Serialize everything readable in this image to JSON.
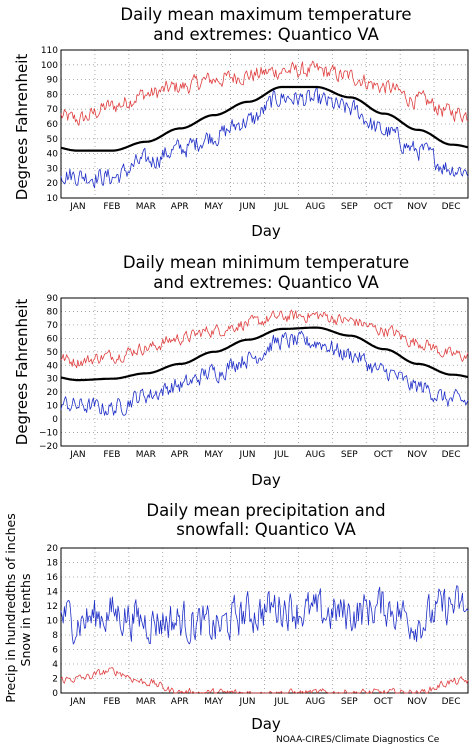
{
  "chart_data": [
    {
      "type": "line",
      "title_line1": "Daily mean maximum temperature",
      "title_line2": "and extremes: Quantico VA",
      "xlabel": "Day",
      "ylabel": "Degrees Fahrenheit",
      "ylim": [
        10,
        110
      ],
      "yticks": [
        "10",
        "20",
        "30",
        "40",
        "50",
        "60",
        "70",
        "80",
        "90",
        "100",
        "110"
      ],
      "categories": [
        "JAN",
        "FEB",
        "MAR",
        "APR",
        "MAY",
        "JUN",
        "JUL",
        "AUG",
        "SEP",
        "OCT",
        "NOV",
        "DEC"
      ],
      "grid": true,
      "series": [
        {
          "key": "mean",
          "color": "#000000",
          "width": 2.2,
          "values": [
            42,
            42,
            48,
            57,
            66,
            75,
            85,
            85,
            78,
            67,
            56,
            46
          ],
          "noise": 0
        },
        {
          "key": "high",
          "color": "#e04040",
          "width": 0.8,
          "values": [
            63,
            72,
            80,
            85,
            90,
            93,
            96,
            96,
            92,
            85,
            76,
            68
          ],
          "noise": 6
        },
        {
          "key": "low",
          "color": "#2030c8",
          "width": 0.8,
          "values": [
            25,
            24,
            35,
            43,
            52,
            62,
            78,
            76,
            70,
            55,
            42,
            30
          ],
          "noise": 7
        }
      ]
    },
    {
      "type": "line",
      "title_line1": "Daily mean minimum temperature",
      "title_line2": "and extremes: Quantico VA",
      "xlabel": "Day",
      "ylabel": "Degrees Fahrenheit",
      "ylim": [
        -20,
        90
      ],
      "yticks": [
        "−20",
        "−10",
        "0",
        "10",
        "20",
        "30",
        "40",
        "50",
        "60",
        "70",
        "80",
        "90"
      ],
      "categories": [
        "JAN",
        "FEB",
        "MAR",
        "APR",
        "MAY",
        "JUN",
        "JUL",
        "AUG",
        "SEP",
        "OCT",
        "NOV",
        "DEC"
      ],
      "grid": true,
      "series": [
        {
          "key": "mean",
          "color": "#000000",
          "width": 2.2,
          "values": [
            29,
            30,
            34,
            41,
            50,
            59,
            67,
            68,
            62,
            52,
            41,
            33
          ],
          "noise": 0
        },
        {
          "key": "high",
          "color": "#e04040",
          "width": 0.8,
          "values": [
            43,
            47,
            53,
            60,
            66,
            71,
            76,
            77,
            73,
            66,
            57,
            48
          ],
          "noise": 5
        },
        {
          "key": "low",
          "color": "#2030c8",
          "width": 0.8,
          "values": [
            10,
            8,
            18,
            25,
            35,
            45,
            58,
            57,
            48,
            35,
            24,
            14
          ],
          "noise": 7
        }
      ]
    },
    {
      "type": "line",
      "title_line1": "Daily mean precipitation and",
      "title_line2": "snowfall: Quantico VA",
      "xlabel": "Day",
      "ylabel_line1": "Precip in hundredths of inches",
      "ylabel_line2": "Snow in tenths",
      "ylim": [
        0,
        20
      ],
      "yticks": [
        "0",
        "2",
        "4",
        "6",
        "8",
        "10",
        "12",
        "14",
        "16",
        "18",
        "20"
      ],
      "categories": [
        "JAN",
        "FEB",
        "MAR",
        "APR",
        "MAY",
        "JUN",
        "JUL",
        "AUG",
        "SEP",
        "OCT",
        "NOV",
        "DEC"
      ],
      "grid": true,
      "series": [
        {
          "key": "precip",
          "color": "#2030c8",
          "width": 0.8,
          "values": [
            10,
            11,
            10,
            10,
            9,
            11,
            12,
            11,
            11,
            12,
            10,
            12
          ],
          "noise": 3
        },
        {
          "key": "snow",
          "color": "#e04040",
          "width": 0.8,
          "values": [
            2,
            3,
            1.5,
            0.1,
            0,
            0,
            0,
            0,
            0,
            0,
            0,
            1.5
          ],
          "noise": 0.6
        }
      ]
    }
  ],
  "credit": "NOAA-CIRES/Climate Diagnostics Ce"
}
